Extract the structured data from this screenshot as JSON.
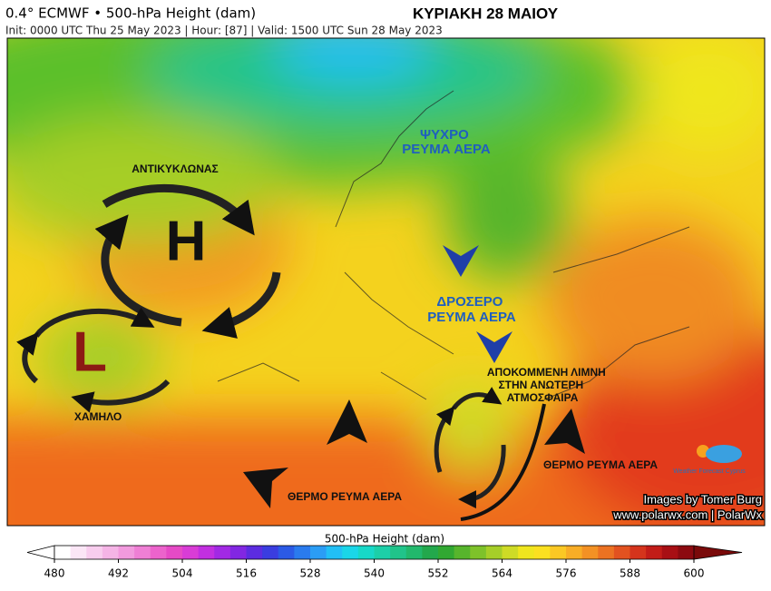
{
  "header": {
    "left_title": "0.4° ECMWF • 500-hPa Height (dam)",
    "subtitle": "Init: 0000 UTC Thu 25 May 2023 | Hour: [87] | Valid: 1500 UTC Sun 28 May 2023",
    "right_title": "ΚΥΡΙΑΚΗ 28 ΜΑΙΟΥ"
  },
  "pressure_centers": [
    {
      "letter": "H",
      "label": "ΑΝΤΙΚΥΚΛΩΝΑΣ"
    },
    {
      "letter": "L",
      "label": "ΧΑΜΗΛΟ"
    }
  ],
  "annotations": [
    {
      "lines": [
        "ΨΥΧΡΟ",
        "ΡΕΥΜΑ ΑΕΡΑ"
      ]
    },
    {
      "lines": [
        "ΔΡΟΣΕΡΟ",
        "ΡΕΥΜΑ ΑΕΡΑ"
      ]
    },
    {
      "lines": [
        "ΑΠΟΚΟΜΜΕΝΗ ΛΙΜΝΗ",
        "ΣΤΗΝ ΑΝΩΤΕΡΗ",
        "ΑΤΜΟΣΦΑΙΡΑ"
      ]
    },
    {
      "lines": [
        "ΘΕΡΜΟ ΡΕΥΜΑ ΑΕΡΑ"
      ]
    },
    {
      "lines": [
        "ΘΕΡΜΟ ΡΕΥΜΑ ΑΕΡΑ"
      ]
    }
  ],
  "logo": "Weather Forecast Cyprus",
  "credits": [
    "Images by Tomer Burg",
    "www.polarwx.com | PolarWx"
  ],
  "colorbar": {
    "label": "500-hPa Height (dam)",
    "range": [
      480,
      600
    ],
    "ticks": [
      480,
      492,
      504,
      516,
      528,
      540,
      552,
      564,
      576,
      588,
      600
    ],
    "under_color": "#ffffff",
    "over_color": "#7a0a0a",
    "colors": [
      "#ffffff",
      "#fbe6f6",
      "#f8cdee",
      "#f5b4e6",
      "#f29ade",
      "#ef7fd5",
      "#ec63cc",
      "#e64ac6",
      "#d93cd6",
      "#c22fe0",
      "#a229e4",
      "#8227e2",
      "#5c2ce0",
      "#3a3de0",
      "#2b5ae6",
      "#2a7bee",
      "#2b9df5",
      "#22bff5",
      "#1ad6e8",
      "#17d8c8",
      "#1ccfa8",
      "#20c48a",
      "#22b86c",
      "#23a84c",
      "#31a832",
      "#57b52c",
      "#7ec22a",
      "#a6ce28",
      "#cedb26",
      "#efe61e",
      "#fbe020",
      "#fbc824",
      "#f8ad26",
      "#f39124",
      "#ec7222",
      "#e25220",
      "#d5341c",
      "#c21c18",
      "#a80f14",
      "#8c0a10"
    ]
  }
}
